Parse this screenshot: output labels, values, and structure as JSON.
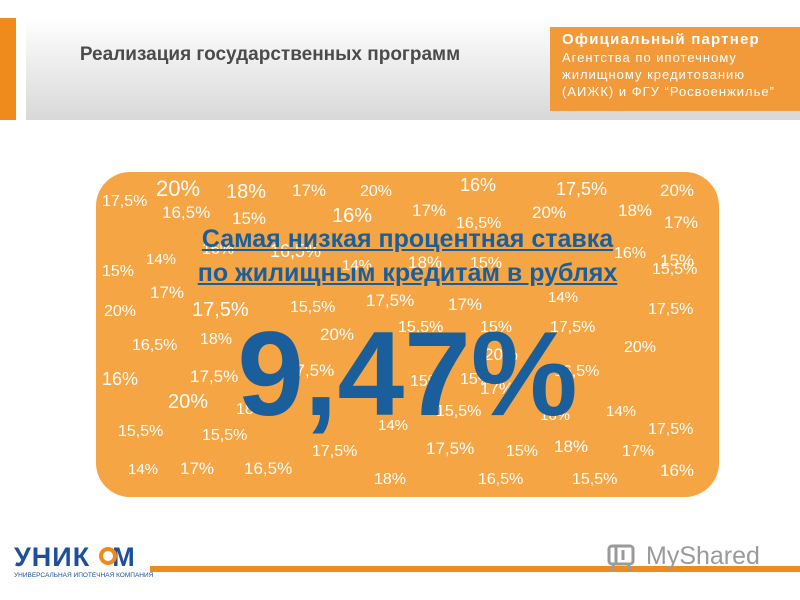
{
  "header": {
    "title": "Реализация государственных программ",
    "partner_line1": "Официальный партнер",
    "partner_line2": "Агентства по ипотечному",
    "partner_line3": "жилищному кредитованию",
    "partner_line4": "(АИЖК) и ФГУ “Росвоенжилье”"
  },
  "card": {
    "headline_line1": "Самая низкая процентная ставка",
    "headline_line2": "по жилищным кредитам в рублях",
    "rate": "9,47%",
    "background_percentages": [
      "20%",
      "18%",
      "17%",
      "20%",
      "16%",
      "17,5%",
      "20%",
      "17,5%",
      "16,5%",
      "15%",
      "16%",
      "17%",
      "16,5%",
      "20%",
      "18%",
      "17%",
      "16%",
      "16,5%",
      "15%",
      "15%",
      "14%",
      "14%",
      "18%",
      "15%",
      "16%",
      "15,5%",
      "17%",
      "17,5%",
      "14%",
      "20%",
      "17,5%",
      "15,5%",
      "17%",
      "17,5%",
      "20%",
      "15,5%",
      "15%",
      "17,5%",
      "16,5%",
      "18%",
      "20%",
      "17,5%",
      "20%",
      "15%",
      "17%",
      "16%",
      "17,5%",
      "16,5%",
      "20%",
      "18%",
      "15%",
      "15,5%",
      "16%",
      "14%",
      "15,5%",
      "15,5%",
      "14%",
      "17,5%",
      "17,5%",
      "17,5%",
      "15%",
      "18%",
      "17%",
      "14%",
      "17%",
      "16,5%",
      "18%",
      "16,5%",
      "15,5%",
      "16%"
    ]
  },
  "footer": {
    "logo_name_part1": "УНИК",
    "logo_name_part2": "М",
    "logo_subtitle": "УНИВЕРСАЛЬНАЯ ИПОТЕЧНАЯ КОМПАНИЯ",
    "watermark": "MyShared"
  },
  "colors": {
    "accent_orange": "#ef8a1c",
    "card_orange": "#f6a544",
    "headline_blue": "#1a5f9c",
    "logo_blue": "#1d4f9a"
  },
  "icons": [
    "myshared-logo-icon",
    "uniкom-ring-icon"
  ]
}
